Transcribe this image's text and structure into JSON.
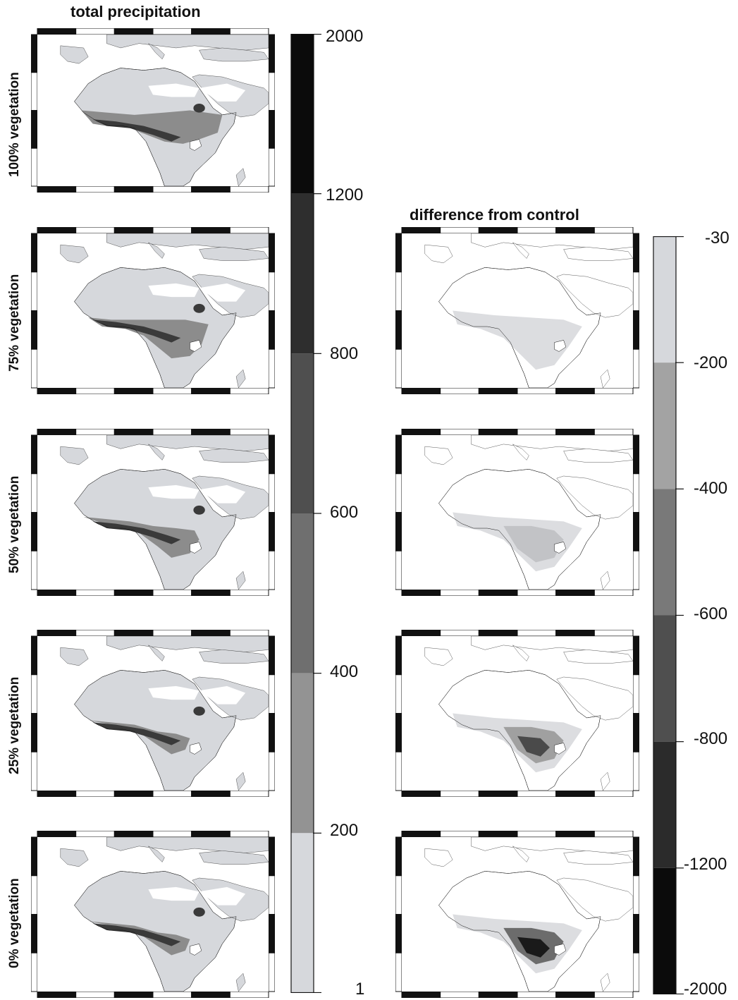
{
  "left_title": "total precipitation",
  "right_title": "difference from control",
  "rows": [
    {
      "label": "100% vegetation"
    },
    {
      "label": "75% vegetation"
    },
    {
      "label": "50% vegetation"
    },
    {
      "label": "25% vegetation"
    },
    {
      "label": "0% vegetation"
    }
  ],
  "precip_colorbar": {
    "ticks": [
      "2000",
      "1200",
      "800",
      "600",
      "400",
      "200",
      "1"
    ],
    "levels_top_to_bottom": [
      "#0b0b0b",
      "#2e2e2e",
      "#4f4f4f",
      "#6f6f6f",
      "#939393",
      "#d6d8dc"
    ]
  },
  "diff_colorbar": {
    "ticks": [
      "-30",
      "-200",
      "-400",
      "-600",
      "-800",
      "-1200",
      "-2000"
    ],
    "levels_top_to_bottom": [
      "#d6d8dc",
      "#a3a3a3",
      "#797979",
      "#4f4f4f",
      "#2b2b2b",
      "#0b0b0b"
    ]
  },
  "colors": {
    "land_light": "#d6d8dc",
    "ocean": "#ffffff",
    "coast": "#111111"
  }
}
